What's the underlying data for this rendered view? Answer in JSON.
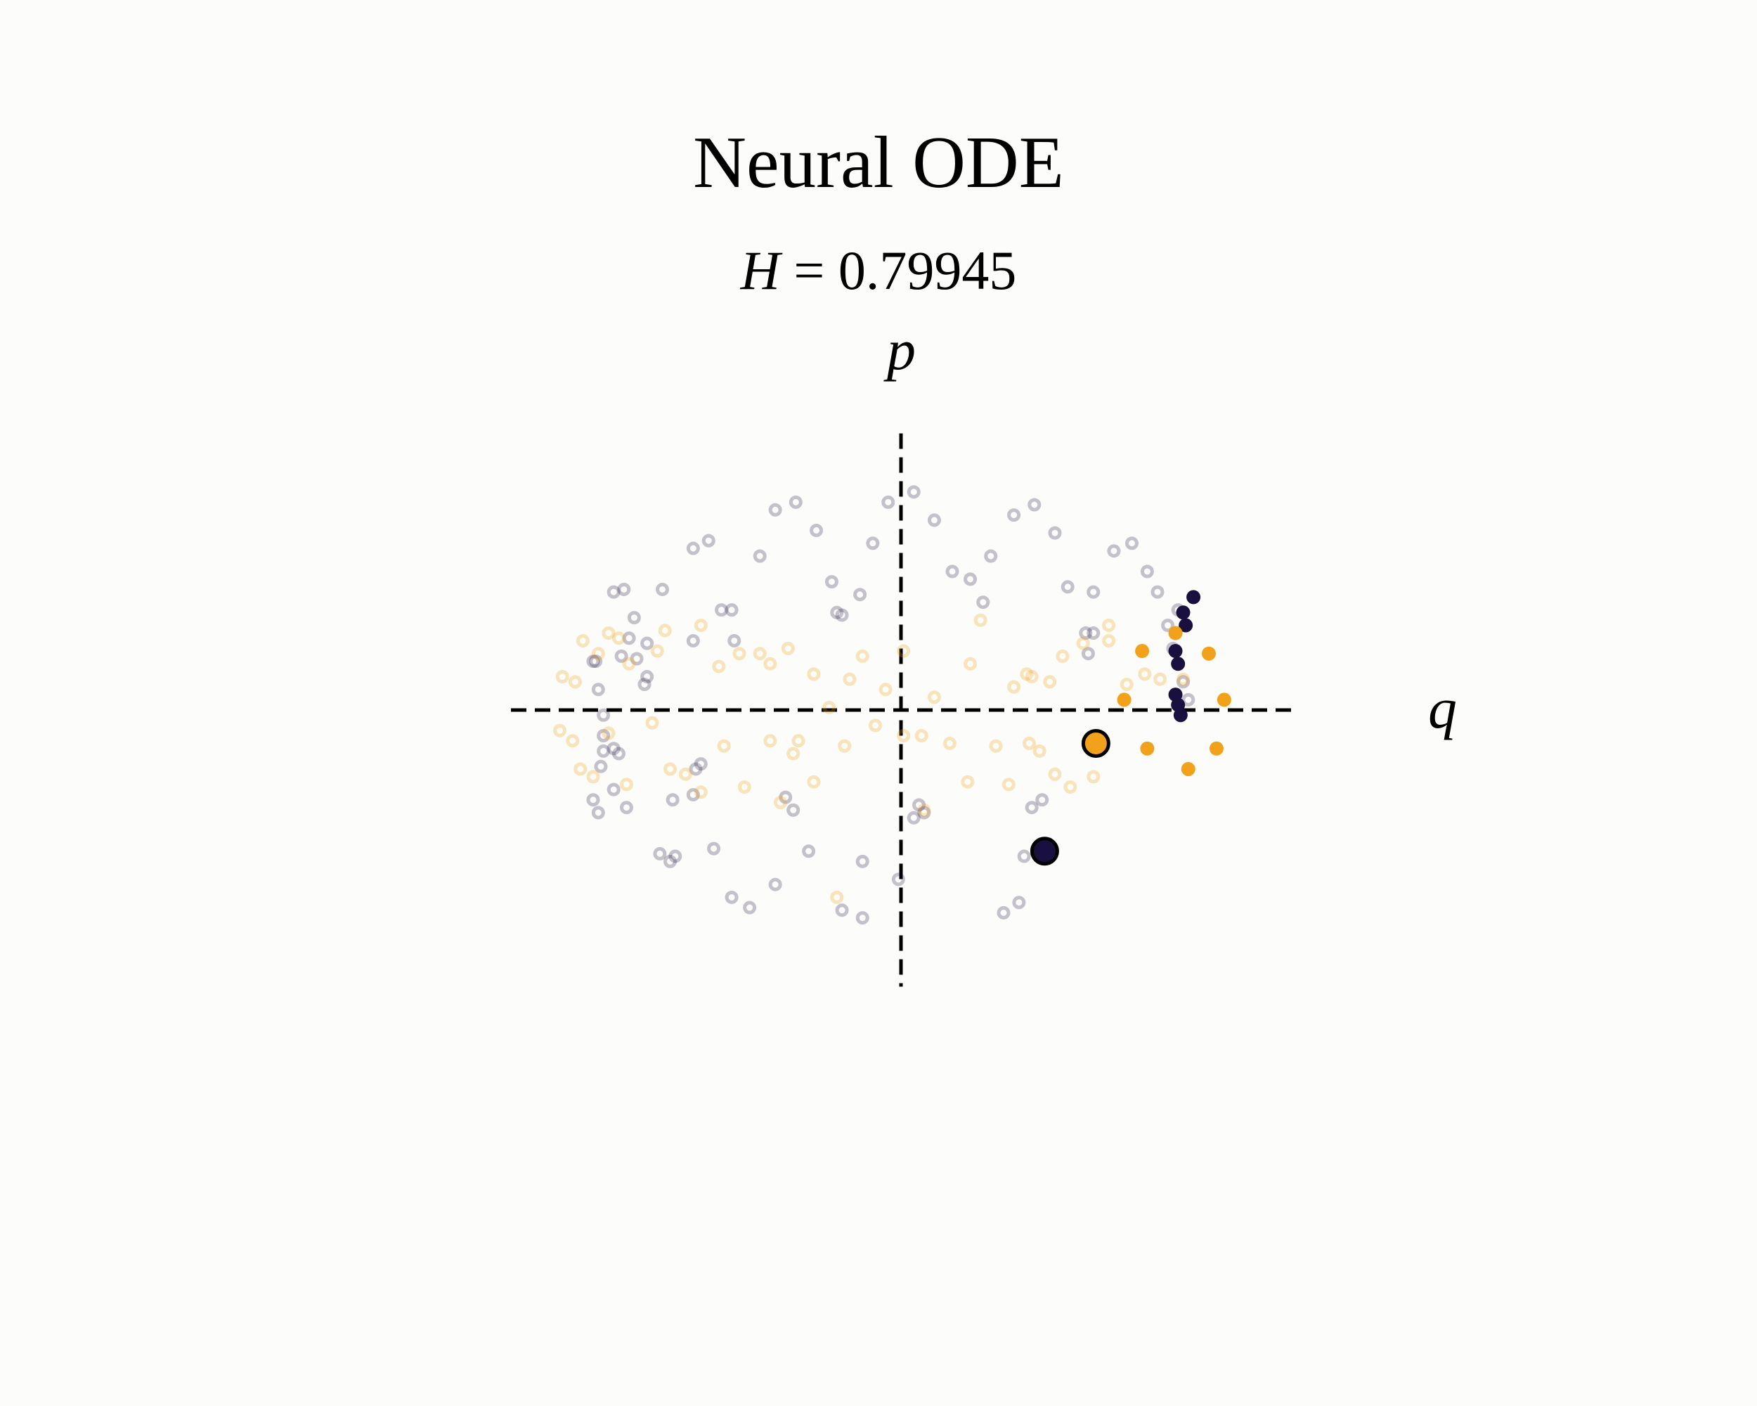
{
  "chart_data": {
    "type": "scatter",
    "title": "Neural ODE",
    "subtitle": {
      "symbol": "H",
      "equals": " = ",
      "value": "0.79945"
    },
    "xlabel": "q",
    "ylabel": "p",
    "xlim": [
      -2.0,
      2.0
    ],
    "ylim": [
      -1.27,
      1.27
    ],
    "grid": false,
    "colors": {
      "dark": "#1a1040",
      "orange": "#f2a11a",
      "background": "#fcfcfa"
    },
    "faded_series": [
      {
        "name": "",
        "color": "#1a1040",
        "points": [
          [
            -0.05,
            0.81
          ],
          [
            0.05,
            0.85
          ],
          [
            0.13,
            0.74
          ],
          [
            -0.49,
            0.78
          ],
          [
            -0.41,
            0.81
          ],
          [
            -0.33,
            0.7
          ],
          [
            -0.55,
            0.6
          ],
          [
            -0.81,
            0.63
          ],
          [
            -0.75,
            0.66
          ],
          [
            -0.11,
            0.65
          ],
          [
            0.44,
            0.76
          ],
          [
            0.52,
            0.8
          ],
          [
            0.6,
            0.69
          ],
          [
            0.35,
            0.6
          ],
          [
            0.2,
            0.54
          ],
          [
            0.32,
            0.42
          ],
          [
            0.27,
            0.51
          ],
          [
            0.65,
            0.48
          ],
          [
            0.75,
            0.46
          ],
          [
            0.83,
            0.62
          ],
          [
            0.9,
            0.65
          ],
          [
            0.96,
            0.54
          ],
          [
            1.0,
            0.46
          ],
          [
            1.04,
            0.33
          ],
          [
            1.08,
            0.39
          ],
          [
            0.75,
            0.3
          ],
          [
            0.72,
            0.3
          ],
          [
            0.73,
            0.22
          ],
          [
            1.06,
            0.24
          ],
          [
            1.1,
            0.11
          ],
          [
            1.12,
            0.04
          ],
          [
            -1.12,
            0.46
          ],
          [
            -1.08,
            0.47
          ],
          [
            -0.93,
            0.47
          ],
          [
            -1.04,
            0.36
          ],
          [
            -1.06,
            0.28
          ],
          [
            -0.99,
            0.26
          ],
          [
            -1.2,
            0.19
          ],
          [
            -1.18,
            0.08
          ],
          [
            -1.16,
            -0.02
          ],
          [
            -1.16,
            -0.1
          ],
          [
            -0.99,
            0.13
          ],
          [
            -1.0,
            0.1
          ],
          [
            -1.19,
            0.19
          ],
          [
            -1.03,
            0.2
          ],
          [
            -1.09,
            0.21
          ],
          [
            -0.81,
            0.27
          ],
          [
            -0.65,
            0.27
          ],
          [
            -0.66,
            0.39
          ],
          [
            -0.7,
            0.39
          ],
          [
            -0.27,
            0.5
          ],
          [
            -0.23,
            0.37
          ],
          [
            -0.25,
            0.38
          ],
          [
            -0.16,
            0.45
          ],
          [
            -1.12,
            -0.15
          ],
          [
            -1.16,
            -0.16
          ],
          [
            -1.1,
            -0.17
          ],
          [
            -1.17,
            -0.22
          ],
          [
            -1.2,
            -0.35
          ],
          [
            -1.18,
            -0.4
          ],
          [
            -1.12,
            -0.31
          ],
          [
            -1.07,
            -0.38
          ],
          [
            -0.89,
            -0.35
          ],
          [
            -0.81,
            -0.33
          ],
          [
            -0.78,
            -0.21
          ],
          [
            -0.8,
            -0.23
          ],
          [
            -0.45,
            -0.34
          ],
          [
            -0.42,
            -0.39
          ],
          [
            -0.36,
            -0.55
          ],
          [
            -0.15,
            -0.59
          ],
          [
            -0.73,
            -0.54
          ],
          [
            -0.9,
            -0.59
          ],
          [
            -0.94,
            -0.56
          ],
          [
            -0.88,
            -0.57
          ],
          [
            -0.49,
            -0.68
          ],
          [
            -0.66,
            -0.73
          ],
          [
            -0.59,
            -0.77
          ],
          [
            -0.23,
            -0.78
          ],
          [
            -0.15,
            -0.81
          ],
          [
            -0.01,
            -0.66
          ],
          [
            0.07,
            -0.37
          ],
          [
            0.09,
            -0.4
          ],
          [
            0.05,
            -0.42
          ],
          [
            0.46,
            -0.75
          ],
          [
            0.4,
            -0.79
          ],
          [
            0.51,
            -0.38
          ],
          [
            0.55,
            -0.35
          ],
          [
            0.48,
            -0.57
          ]
        ]
      },
      {
        "name": "",
        "color": "#f2a11a",
        "points": [
          [
            -1.32,
            0.13
          ],
          [
            -1.27,
            0.11
          ],
          [
            -1.24,
            0.27
          ],
          [
            -1.18,
            0.22
          ],
          [
            -1.14,
            0.3
          ],
          [
            -1.1,
            0.28
          ],
          [
            -1.06,
            0.18
          ],
          [
            -0.95,
            0.23
          ],
          [
            -0.92,
            0.31
          ],
          [
            -0.78,
            0.33
          ],
          [
            -0.71,
            0.17
          ],
          [
            -0.63,
            0.22
          ],
          [
            -0.55,
            0.22
          ],
          [
            -0.51,
            0.18
          ],
          [
            -0.44,
            0.24
          ],
          [
            -0.34,
            0.14
          ],
          [
            -0.28,
            0.01
          ],
          [
            -0.2,
            0.12
          ],
          [
            -0.15,
            0.21
          ],
          [
            -0.06,
            0.08
          ],
          [
            0.01,
            0.23
          ],
          [
            0.13,
            0.05
          ],
          [
            0.27,
            0.18
          ],
          [
            0.31,
            0.35
          ],
          [
            0.44,
            0.09
          ],
          [
            0.49,
            0.14
          ],
          [
            0.51,
            0.13
          ],
          [
            0.58,
            0.11
          ],
          [
            0.63,
            0.21
          ],
          [
            0.71,
            0.26
          ],
          [
            0.81,
            0.27
          ],
          [
            0.81,
            0.33
          ],
          [
            0.88,
            0.1
          ],
          [
            0.95,
            0.14
          ],
          [
            1.01,
            0.12
          ],
          [
            1.1,
            0.12
          ],
          [
            -1.33,
            -0.08
          ],
          [
            -1.28,
            -0.12
          ],
          [
            -1.25,
            -0.23
          ],
          [
            -1.2,
            -0.26
          ],
          [
            -1.14,
            -0.09
          ],
          [
            -1.07,
            -0.29
          ],
          [
            -0.97,
            -0.05
          ],
          [
            -0.9,
            -0.23
          ],
          [
            -0.84,
            -0.25
          ],
          [
            -0.78,
            -0.32
          ],
          [
            -0.69,
            -0.14
          ],
          [
            -0.61,
            -0.3
          ],
          [
            -0.51,
            -0.12
          ],
          [
            -0.4,
            -0.12
          ],
          [
            -0.34,
            -0.28
          ],
          [
            -0.22,
            -0.14
          ],
          [
            -0.1,
            -0.06
          ],
          [
            0.01,
            -0.1
          ],
          [
            0.08,
            -0.1
          ],
          [
            0.19,
            -0.13
          ],
          [
            0.26,
            -0.28
          ],
          [
            0.37,
            -0.14
          ],
          [
            0.42,
            -0.29
          ],
          [
            0.5,
            -0.13
          ],
          [
            0.54,
            -0.16
          ],
          [
            0.6,
            -0.25
          ],
          [
            0.66,
            -0.3
          ],
          [
            0.75,
            -0.26
          ],
          [
            -0.47,
            -0.36
          ],
          [
            0.09,
            -0.39
          ],
          [
            -0.25,
            -0.73
          ],
          [
            -0.42,
            -0.17
          ]
        ]
      }
    ],
    "active_series": [
      {
        "name": "",
        "color": "#1a1040",
        "points": [
          [
            1.14,
            0.44
          ],
          [
            1.1,
            0.38
          ],
          [
            1.11,
            0.33
          ],
          [
            1.07,
            0.23
          ],
          [
            1.08,
            0.18
          ],
          [
            1.07,
            0.06
          ],
          [
            1.08,
            0.02
          ],
          [
            1.09,
            -0.02
          ]
        ]
      },
      {
        "name": "",
        "color": "#f2a11a",
        "points": [
          [
            1.07,
            0.3
          ],
          [
            0.94,
            0.23
          ],
          [
            1.2,
            0.22
          ],
          [
            0.87,
            0.04
          ],
          [
            1.26,
            0.04
          ],
          [
            0.96,
            -0.15
          ],
          [
            1.23,
            -0.15
          ],
          [
            1.12,
            -0.23
          ]
        ]
      }
    ],
    "highlighted_points": [
      {
        "name": "",
        "color": "#f2a11a",
        "point": [
          0.76,
          -0.13
        ]
      },
      {
        "name": "",
        "color": "#1a1040",
        "point": [
          0.56,
          -0.55
        ]
      }
    ]
  }
}
